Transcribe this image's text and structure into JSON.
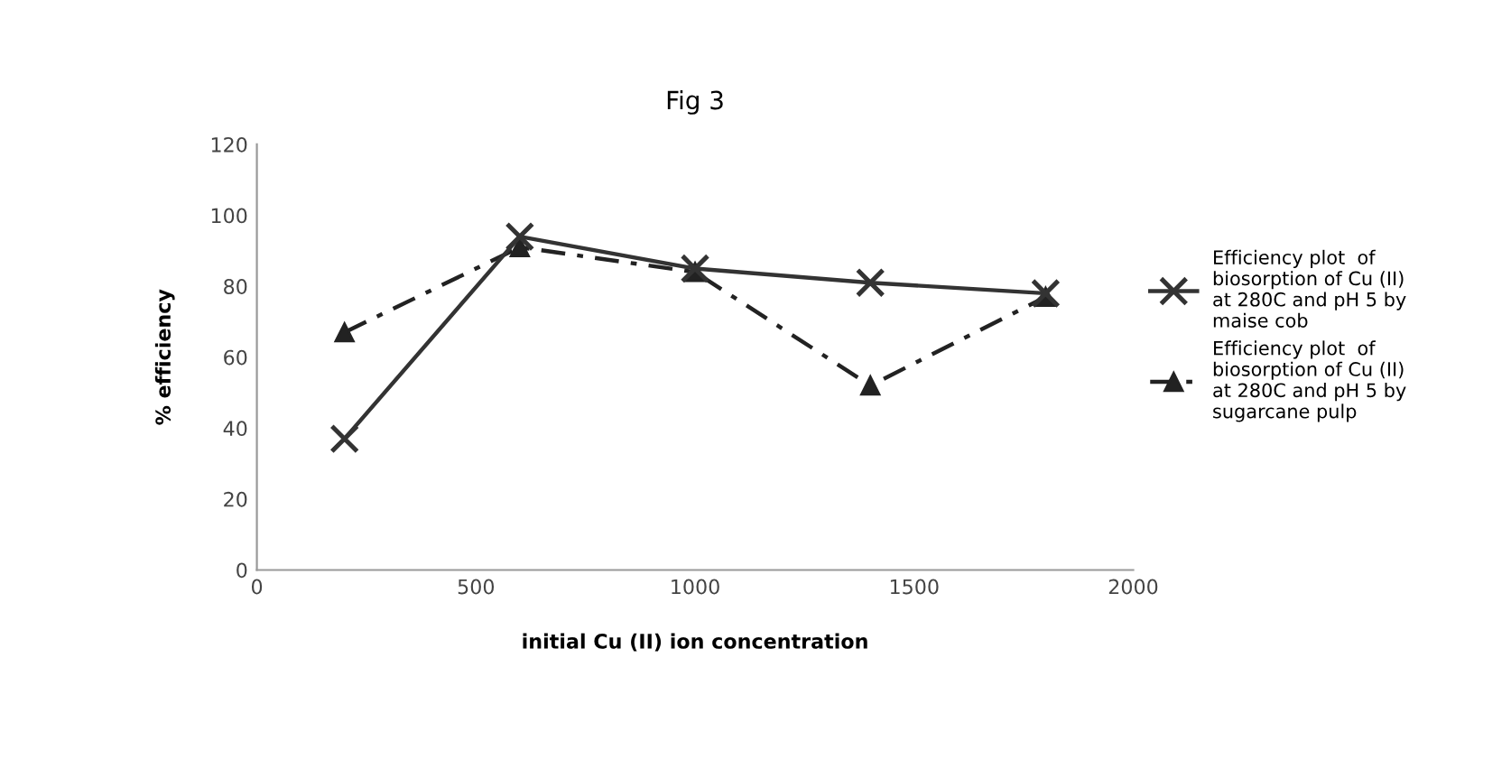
{
  "chart_data": {
    "type": "line",
    "title": "Fig 3",
    "xlabel": "initial Cu (II) ion concentration",
    "ylabel": "% efficiency",
    "x": [
      200,
      600,
      1000,
      1400,
      1800
    ],
    "series": [
      {
        "name": "Efficiency plot  of biosorption of Cu (II) at 280C and pH 5 by maise cob",
        "color": "#333333",
        "values": [
          37,
          94,
          85,
          81,
          78
        ],
        "marker": "cross",
        "line_style": "solid"
      },
      {
        "name": "Efficiency plot  of biosorption of Cu (II) at 280C and pH 5 by sugarcane pulp",
        "color": "#222222",
        "values": [
          67,
          91,
          84,
          52,
          77
        ],
        "marker": "triangle",
        "line_style": "dashed"
      }
    ],
    "xlim": [
      0,
      2000
    ],
    "xticks": [
      0,
      500,
      1000,
      1500,
      2000
    ],
    "ylim": [
      0,
      120
    ],
    "yticks": [
      0,
      20,
      40,
      60,
      80,
      100,
      120
    ],
    "grid": false,
    "legend": "right"
  }
}
